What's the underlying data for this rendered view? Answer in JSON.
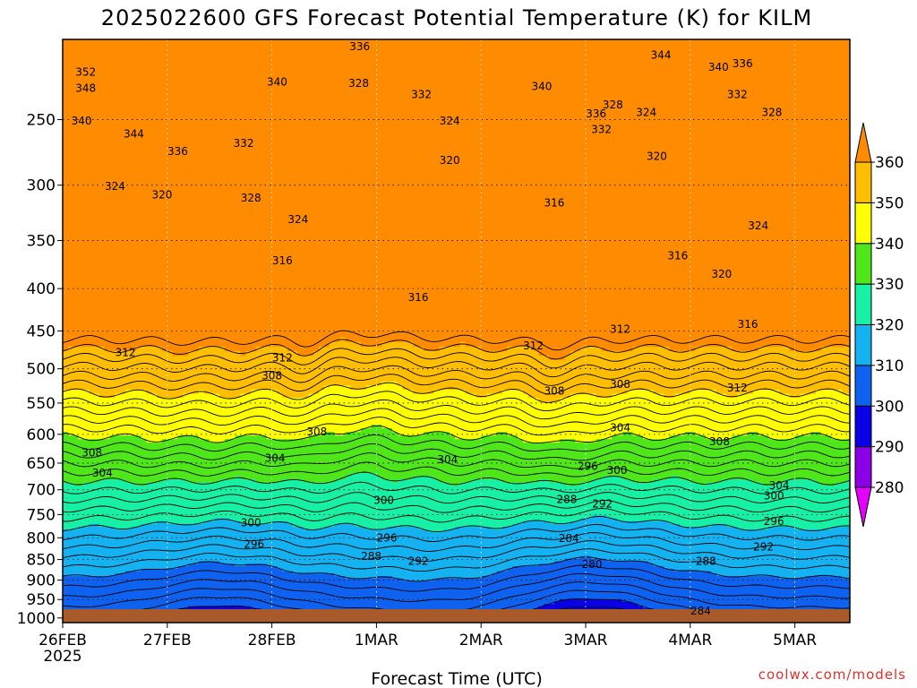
{
  "chart_data": {
    "type": "heatmap",
    "title": "2025022600 GFS Forecast Potential Temperature (K) for KILM",
    "xlabel": "Forecast Time (UTC)",
    "ylabel": "",
    "x_ticks": [
      "26FEB",
      "27FEB",
      "28FEB",
      "1MAR",
      "2MAR",
      "3MAR",
      "4MAR",
      "5MAR"
    ],
    "x_sublabel": "2025",
    "y_ticks": [
      250,
      300,
      350,
      400,
      450,
      500,
      550,
      600,
      650,
      700,
      750,
      800,
      850,
      900,
      950,
      1000
    ],
    "y_axis": {
      "scale": "log",
      "range": [
        1013,
        200
      ],
      "inverted": true
    },
    "grid": true,
    "colorbar": {
      "levels": [
        280,
        290,
        300,
        310,
        320,
        330,
        340,
        350,
        360
      ],
      "colors": [
        "#e600ff",
        "#8c00e6",
        "#0a00e6",
        "#0f62f0",
        "#14b2f0",
        "#17f0a5",
        "#4fe61a",
        "#ffff00",
        "#ffbe00",
        "#ff8c00"
      ]
    },
    "contour_labels": [
      {
        "value": 352,
        "time": 0.22,
        "p": 219
      },
      {
        "value": 348,
        "time": 0.22,
        "p": 229
      },
      {
        "value": 340,
        "time": 0.18,
        "p": 251
      },
      {
        "value": 344,
        "time": 0.68,
        "p": 260
      },
      {
        "value": 336,
        "time": 1.1,
        "p": 273
      },
      {
        "value": 332,
        "time": 1.73,
        "p": 267
      },
      {
        "value": 340,
        "time": 2.05,
        "p": 225
      },
      {
        "value": 336,
        "time": 2.84,
        "p": 204
      },
      {
        "value": 328,
        "time": 2.83,
        "p": 226
      },
      {
        "value": 332,
        "time": 3.43,
        "p": 233
      },
      {
        "value": 324,
        "time": 3.7,
        "p": 251
      },
      {
        "value": 320,
        "time": 3.7,
        "p": 280
      },
      {
        "value": 340,
        "time": 4.58,
        "p": 228
      },
      {
        "value": 336,
        "time": 5.1,
        "p": 246
      },
      {
        "value": 332,
        "time": 5.15,
        "p": 257
      },
      {
        "value": 328,
        "time": 5.26,
        "p": 240
      },
      {
        "value": 324,
        "time": 5.58,
        "p": 245
      },
      {
        "value": 344,
        "time": 5.72,
        "p": 209
      },
      {
        "value": 340,
        "time": 6.27,
        "p": 216
      },
      {
        "value": 336,
        "time": 6.5,
        "p": 214
      },
      {
        "value": 332,
        "time": 6.45,
        "p": 233
      },
      {
        "value": 328,
        "time": 6.78,
        "p": 245
      },
      {
        "value": 320,
        "time": 5.68,
        "p": 277
      },
      {
        "value": 324,
        "time": 0.5,
        "p": 301
      },
      {
        "value": 320,
        "time": 0.95,
        "p": 308
      },
      {
        "value": 328,
        "time": 1.8,
        "p": 311
      },
      {
        "value": 324,
        "time": 2.25,
        "p": 330
      },
      {
        "value": 316,
        "time": 4.7,
        "p": 315
      },
      {
        "value": 316,
        "time": 2.1,
        "p": 370
      },
      {
        "value": 316,
        "time": 3.4,
        "p": 410
      },
      {
        "value": 316,
        "time": 5.88,
        "p": 365
      },
      {
        "value": 324,
        "time": 6.65,
        "p": 336
      },
      {
        "value": 320,
        "time": 6.3,
        "p": 384
      },
      {
        "value": 316,
        "time": 6.55,
        "p": 442
      },
      {
        "value": 312,
        "time": 0.6,
        "p": 478
      },
      {
        "value": 312,
        "time": 2.1,
        "p": 485
      },
      {
        "value": 308,
        "time": 2.0,
        "p": 510
      },
      {
        "value": 312,
        "time": 4.5,
        "p": 469
      },
      {
        "value": 312,
        "time": 5.33,
        "p": 448
      },
      {
        "value": 308,
        "time": 4.7,
        "p": 532
      },
      {
        "value": 308,
        "time": 5.33,
        "p": 522
      },
      {
        "value": 312,
        "time": 6.45,
        "p": 527
      },
      {
        "value": 304,
        "time": 5.33,
        "p": 589
      },
      {
        "value": 308,
        "time": 6.28,
        "p": 612
      },
      {
        "value": 308,
        "time": 2.43,
        "p": 596
      },
      {
        "value": 308,
        "time": 0.28,
        "p": 632
      },
      {
        "value": 304,
        "time": 0.38,
        "p": 668
      },
      {
        "value": 304,
        "time": 2.03,
        "p": 641
      },
      {
        "value": 304,
        "time": 3.68,
        "p": 644
      },
      {
        "value": 296,
        "time": 5.02,
        "p": 656
      },
      {
        "value": 300,
        "time": 5.3,
        "p": 663
      },
      {
        "value": 304,
        "time": 6.85,
        "p": 692
      },
      {
        "value": 300,
        "time": 3.07,
        "p": 721
      },
      {
        "value": 288,
        "time": 4.82,
        "p": 719
      },
      {
        "value": 292,
        "time": 5.16,
        "p": 728
      },
      {
        "value": 300,
        "time": 6.8,
        "p": 712
      },
      {
        "value": 296,
        "time": 6.8,
        "p": 764
      },
      {
        "value": 300,
        "time": 1.8,
        "p": 767
      },
      {
        "value": 296,
        "time": 1.83,
        "p": 815
      },
      {
        "value": 296,
        "time": 3.1,
        "p": 800
      },
      {
        "value": 292,
        "time": 3.4,
        "p": 854
      },
      {
        "value": 288,
        "time": 2.95,
        "p": 842
      },
      {
        "value": 284,
        "time": 4.84,
        "p": 801
      },
      {
        "value": 280,
        "time": 5.06,
        "p": 862
      },
      {
        "value": 292,
        "time": 6.7,
        "p": 821
      },
      {
        "value": 288,
        "time": 6.15,
        "p": 854
      },
      {
        "value": 284,
        "time": 6.1,
        "p": 981
      }
    ]
  },
  "credit": "coolwx.com/models"
}
